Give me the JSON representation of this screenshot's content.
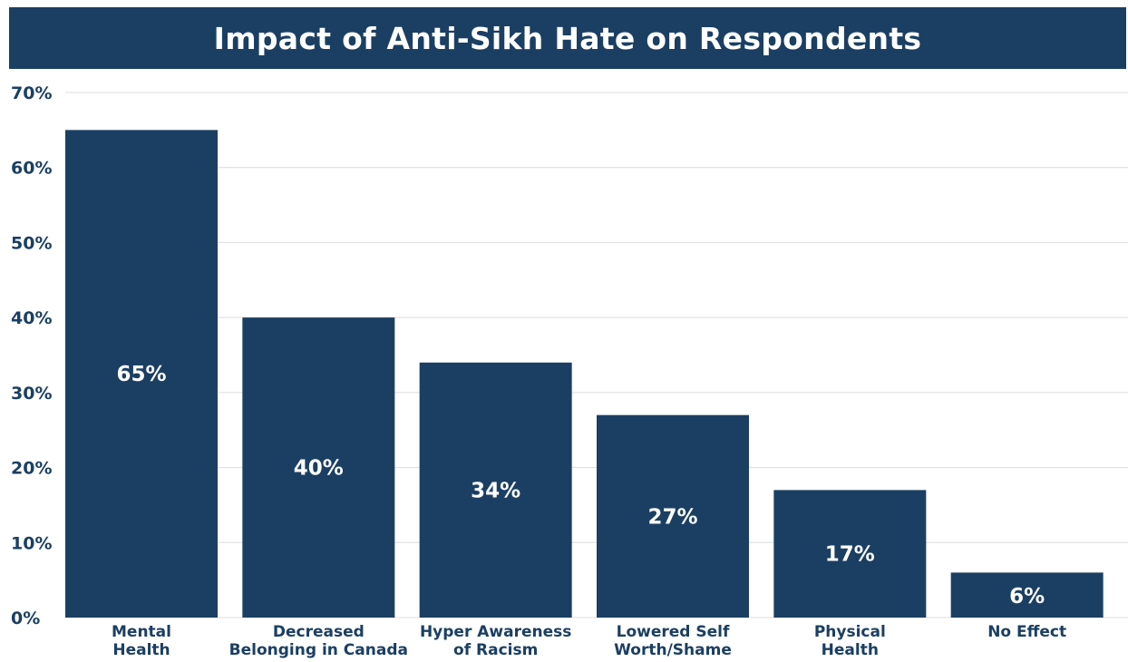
{
  "chart_data": {
    "type": "bar",
    "title": "Impact of Anti-Sikh Hate on Respondents",
    "categories": [
      [
        "Mental",
        "Health"
      ],
      [
        "Decreased",
        "Belonging in Canada"
      ],
      [
        "Hyper Awareness",
        "of Racism"
      ],
      [
        "Lowered Self",
        "Worth/Shame"
      ],
      [
        "Physical",
        "Health"
      ],
      [
        "No Effect"
      ]
    ],
    "values": [
      65,
      40,
      34,
      27,
      17,
      6
    ],
    "data_labels": [
      "65%",
      "40%",
      "34%",
      "27%",
      "17%",
      "6%"
    ],
    "yticks": [
      "0%",
      "10%",
      "20%",
      "30%",
      "40%",
      "50%",
      "60%",
      "70%"
    ],
    "ylim": [
      0,
      70
    ],
    "xlabel": "",
    "ylabel": "",
    "grid": true,
    "legend": "none",
    "colors": {
      "bar": "#1b3f63",
      "title_bg": "#1b3f63",
      "grid": "#dcdcdc",
      "label_text": "#ffffff",
      "axis_text": "#1b3f63"
    }
  }
}
